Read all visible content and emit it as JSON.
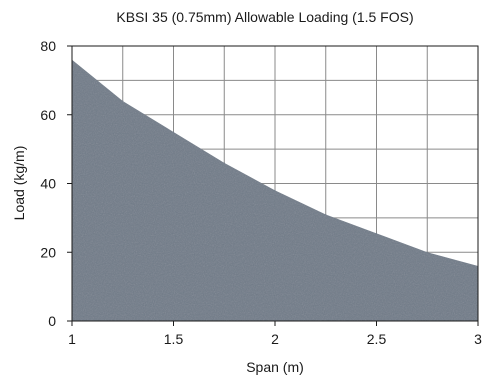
{
  "chart_data": {
    "type": "area",
    "title": "KBSI 35 (0.75mm) Allowable Loading (1.5 FOS)",
    "xlabel": "Span (m)",
    "ylabel": "Load (kg/m)",
    "xlim": [
      1,
      3
    ],
    "ylim": [
      0,
      80
    ],
    "x_ticks": [
      1,
      1.5,
      2,
      2.5,
      3
    ],
    "x_tick_labels": [
      "1",
      "1.5",
      "2",
      "2.5",
      "3"
    ],
    "y_ticks": [
      0,
      20,
      40,
      60,
      80
    ],
    "y_tick_labels": [
      "0",
      "20",
      "40",
      "60",
      "80"
    ],
    "grid": true,
    "x": [
      1,
      1.25,
      1.5,
      1.75,
      2,
      2.25,
      2.5,
      2.75,
      3
    ],
    "series": [
      {
        "values": [
          76,
          64,
          55,
          46,
          38,
          31,
          25.5,
          20,
          16
        ],
        "color": "#6f7a88"
      }
    ]
  }
}
